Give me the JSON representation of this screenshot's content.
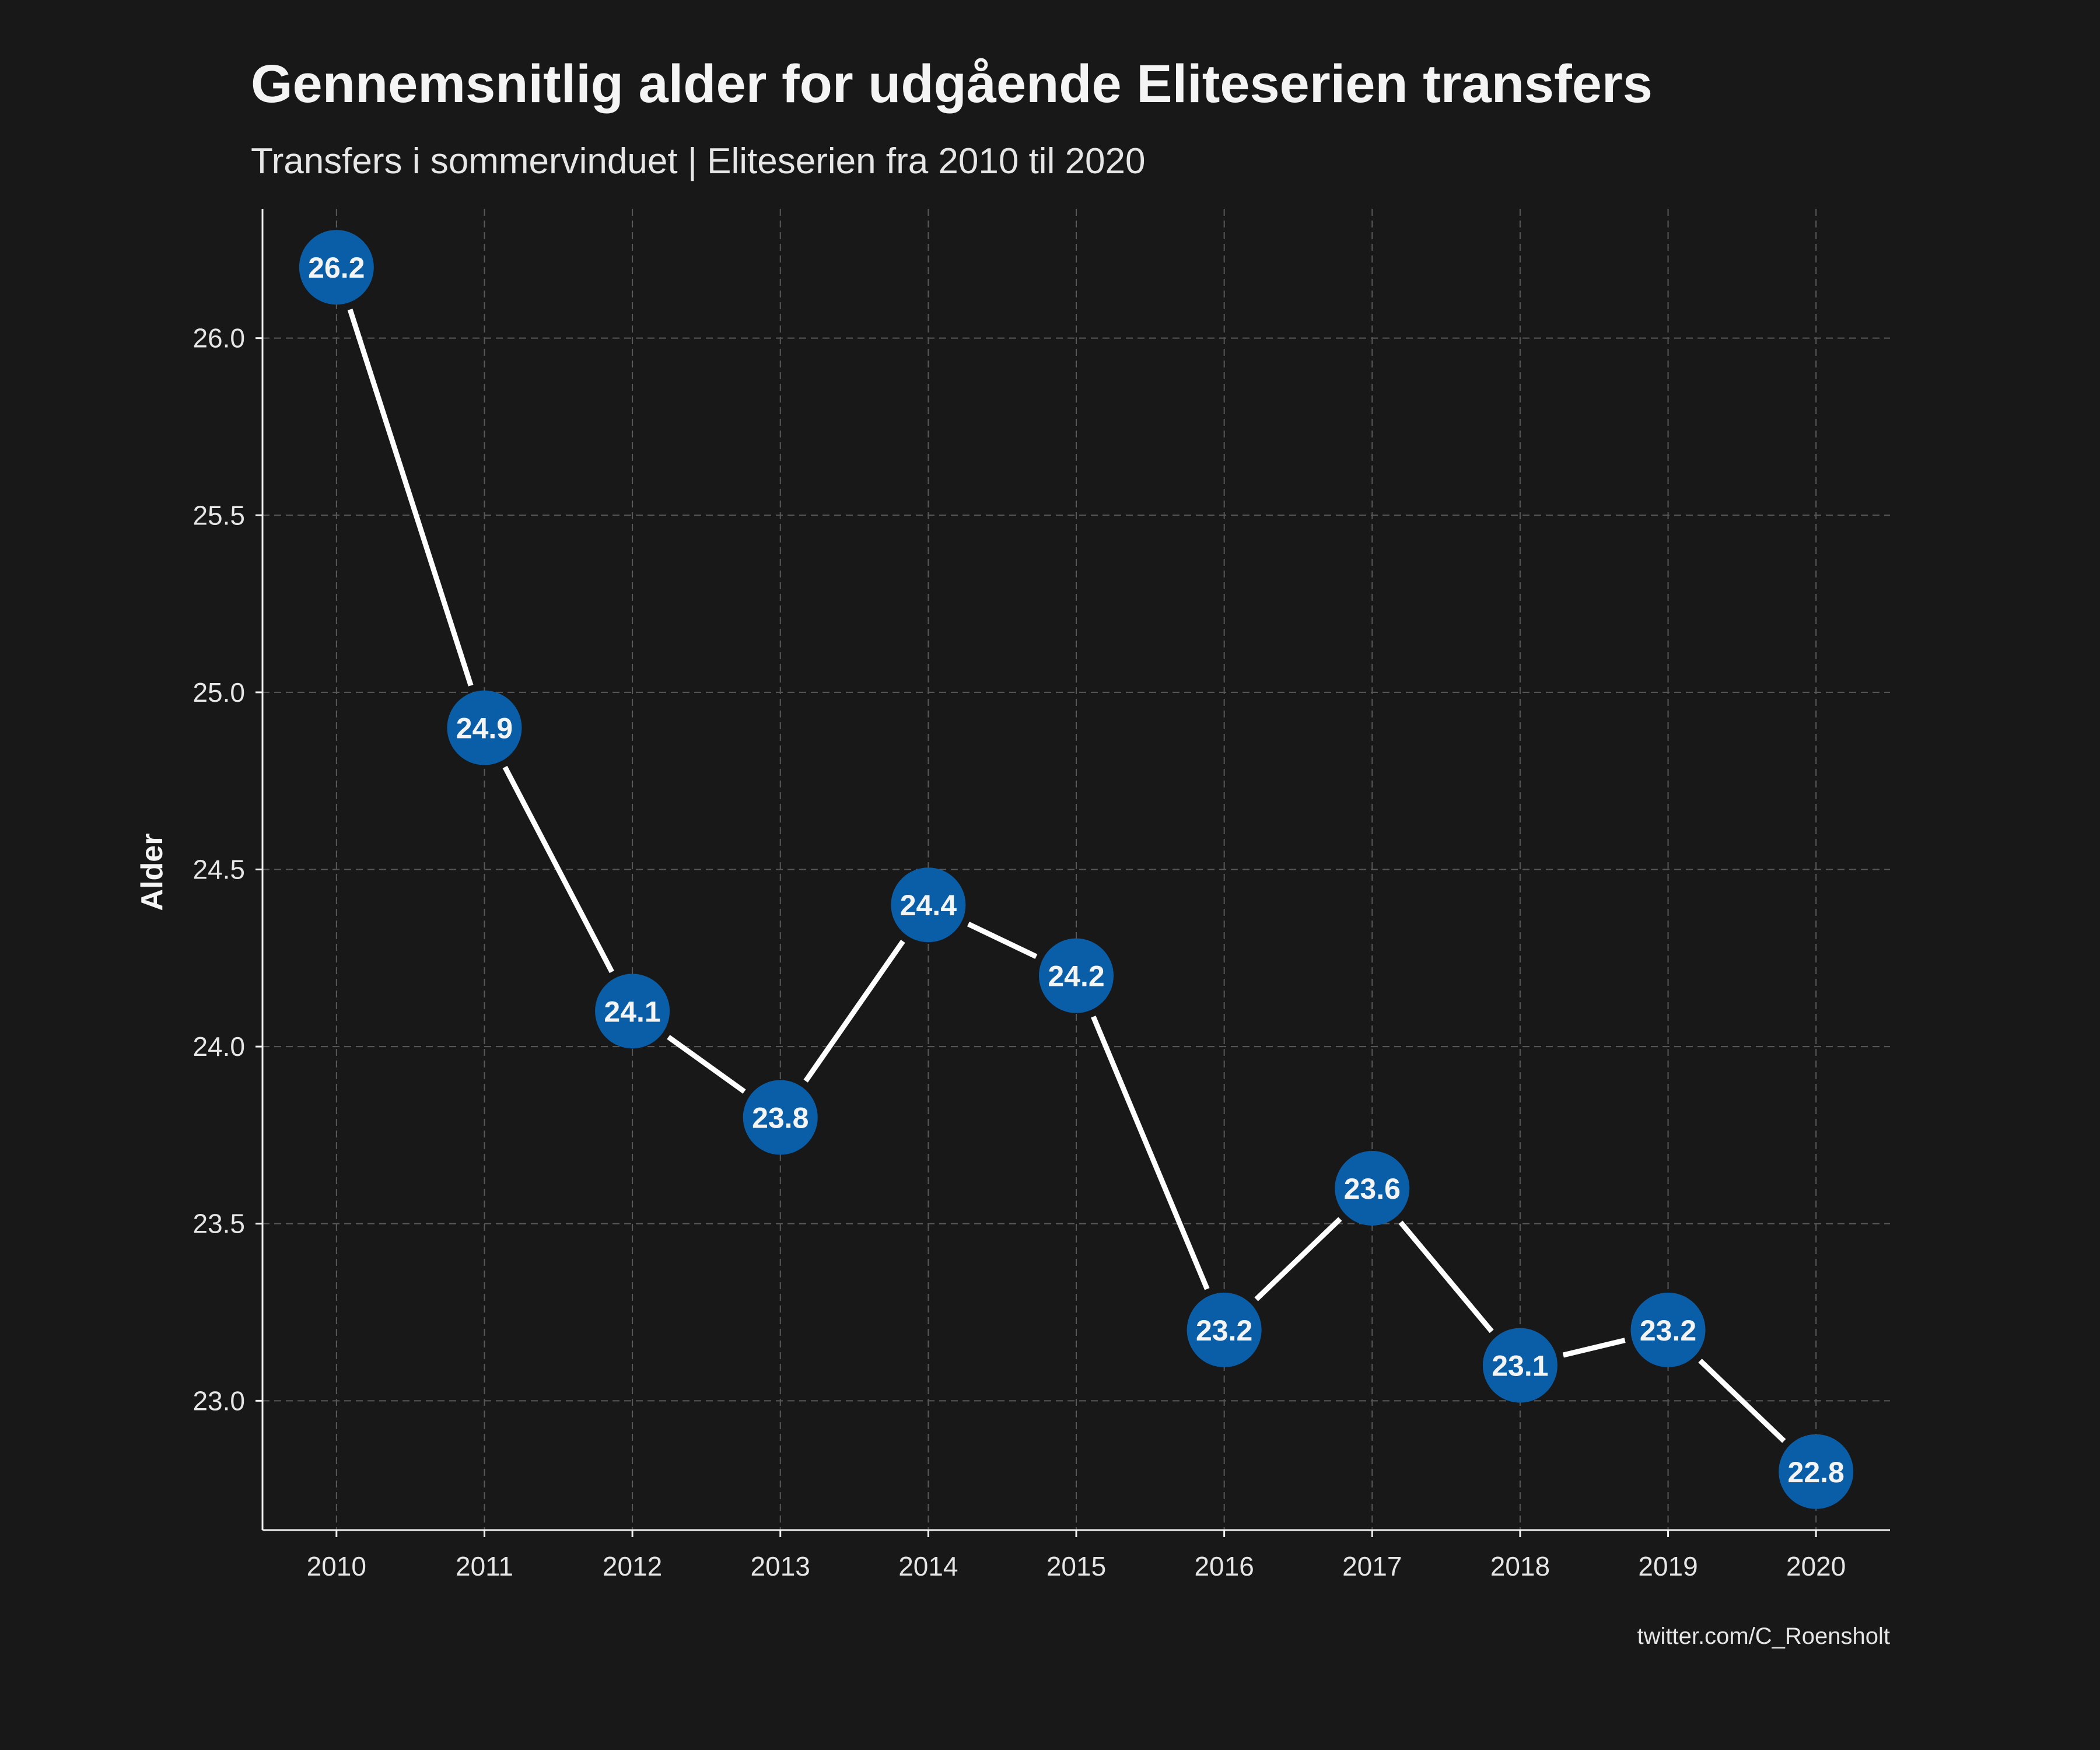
{
  "chart_data": {
    "type": "line",
    "title": "Gennemsnitlig alder for udgående Eliteserien transfers",
    "subtitle": "Transfers i sommervinduet | Eliteserien fra 2010 til 2020",
    "xlabel": "",
    "ylabel": "Alder",
    "caption": "twitter.com/C_Roensholt",
    "x": [
      2010,
      2011,
      2012,
      2013,
      2014,
      2015,
      2016,
      2017,
      2018,
      2019,
      2020
    ],
    "values": [
      26.2,
      24.9,
      24.1,
      23.8,
      24.4,
      24.2,
      23.2,
      23.6,
      23.1,
      23.2,
      22.8
    ],
    "data_labels": [
      "26.2",
      "24.9",
      "24.1",
      "23.8",
      "24.4",
      "24.2",
      "23.2",
      "23.6",
      "23.1",
      "23.2",
      "22.8"
    ],
    "x_ticks": [
      "2010",
      "2011",
      "2012",
      "2013",
      "2014",
      "2015",
      "2016",
      "2017",
      "2018",
      "2019",
      "2020"
    ],
    "y_ticks": [
      23.0,
      23.5,
      24.0,
      24.5,
      25.0,
      25.5,
      26.0
    ],
    "y_tick_labels": [
      "23.0",
      "23.5",
      "24.0",
      "24.5",
      "25.0",
      "25.5",
      "26.0"
    ],
    "xlim": [
      2009.5,
      2020.5
    ],
    "ylim": [
      22.635,
      26.365
    ],
    "grid": true,
    "legend": "none",
    "colors": {
      "background": "#181818",
      "point_fill": "#0a5ea8",
      "line": "#ffffff",
      "grid": "#585858",
      "text": "#f2f2f2"
    }
  }
}
